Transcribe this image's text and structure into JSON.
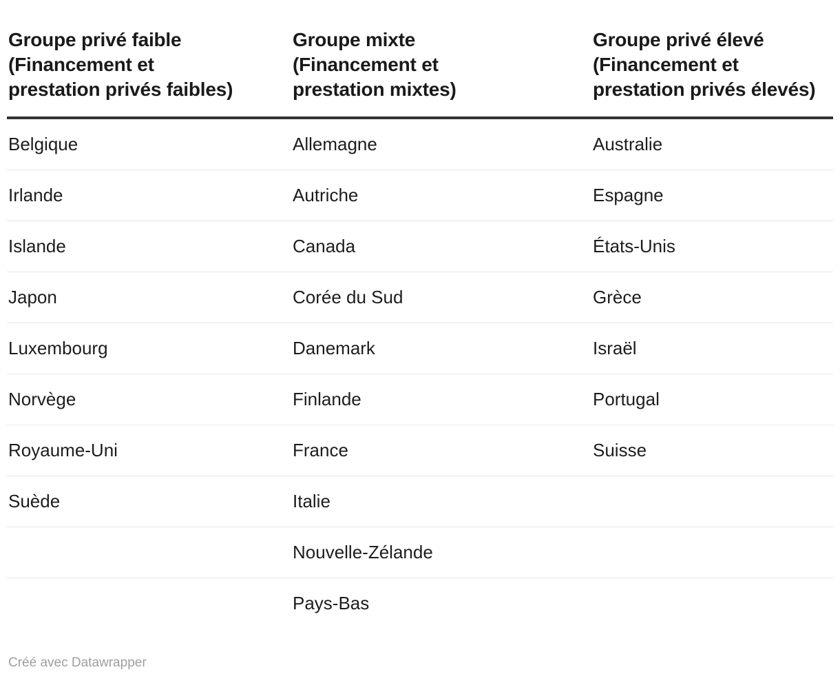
{
  "chart_data": {
    "type": "table",
    "columns": [
      "Groupe privé faible (Financement et prestation privés faibles)",
      "Groupe mixte (Financement et prestation mixtes)",
      "Groupe privé élevé (Financement et prestation privés élevés)"
    ],
    "rows": [
      [
        "Belgique",
        "Allemagne",
        "Australie"
      ],
      [
        "Irlande",
        "Autriche",
        "Espagne"
      ],
      [
        "Islande",
        "Canada",
        "États-Unis"
      ],
      [
        "Japon",
        "Corée du Sud",
        "Grèce"
      ],
      [
        "Luxembourg",
        "Danemark",
        "Israël"
      ],
      [
        "Norvège",
        "Finlande",
        "Portugal"
      ],
      [
        "Royaume-Uni",
        "France",
        "Suisse"
      ],
      [
        "Suède",
        "Italie",
        ""
      ],
      [
        "",
        "Nouvelle-Zélande",
        ""
      ],
      [
        "",
        "Pays-Bas",
        ""
      ]
    ]
  },
  "header_lines": {
    "col0": [
      "Groupe privé faible",
      "(Financement et",
      "prestation privés faibles)"
    ],
    "col1": [
      "Groupe mixte",
      "(Financement et",
      "prestation mixtes)"
    ],
    "col2": [
      "Groupe privé élevé",
      "(Financement et",
      "prestation privés élevés)"
    ]
  },
  "footer": {
    "attribution": "Créé avec Datawrapper"
  },
  "colors": {
    "text": "#1d1d1d",
    "header-text": "#1a1a1a",
    "header-rule": "#333333",
    "row-separator": "#e8e8e8",
    "footer-text": "#9e9e9e"
  }
}
